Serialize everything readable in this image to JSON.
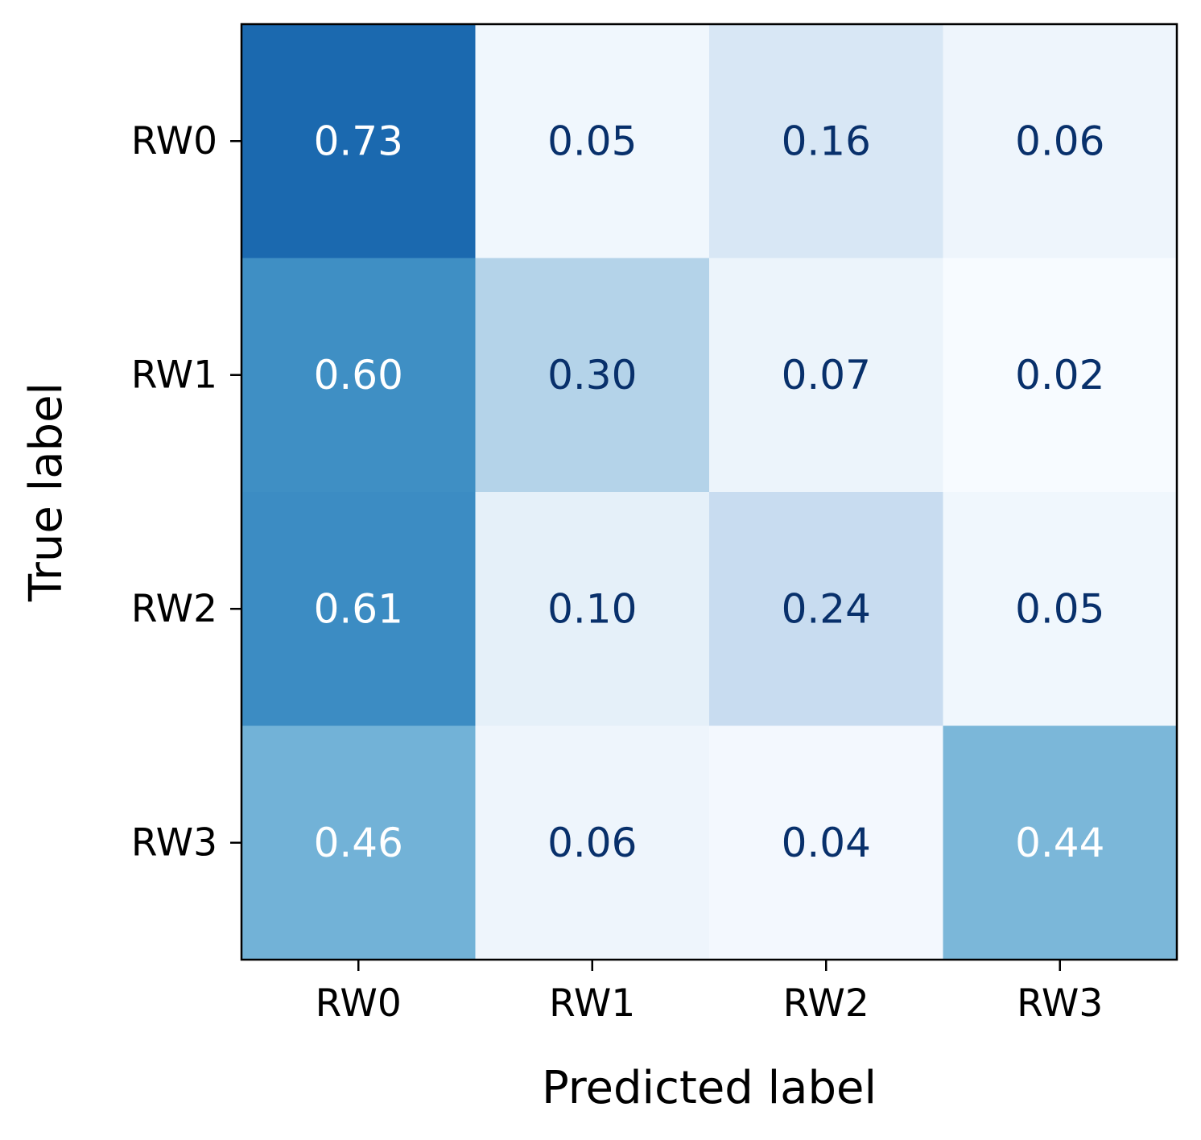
{
  "chart_data": {
    "type": "heatmap",
    "title": "",
    "xlabel": "Predicted label",
    "ylabel": "True label",
    "x_categories": [
      "RW0",
      "RW1",
      "RW2",
      "RW3"
    ],
    "y_categories": [
      "RW0",
      "RW1",
      "RW2",
      "RW3"
    ],
    "values": [
      [
        0.73,
        0.05,
        0.16,
        0.06
      ],
      [
        0.6,
        0.3,
        0.07,
        0.02
      ],
      [
        0.61,
        0.1,
        0.24,
        0.05
      ],
      [
        0.46,
        0.06,
        0.04,
        0.44
      ]
    ],
    "cell_labels": [
      [
        "0.73",
        "0.05",
        "0.16",
        "0.06"
      ],
      [
        "0.60",
        "0.30",
        "0.07",
        "0.02"
      ],
      [
        "0.61",
        "0.10",
        "0.24",
        "0.05"
      ],
      [
        "0.46",
        "0.06",
        "0.04",
        "0.44"
      ]
    ],
    "colormap": "Blues",
    "color_range": [
      0.02,
      0.73
    ],
    "colors": {
      "text_light": "#ffffff",
      "text_dark": "#08306b",
      "frame": "#000000"
    },
    "grid": false,
    "legend": "none",
    "colorbar": false
  }
}
